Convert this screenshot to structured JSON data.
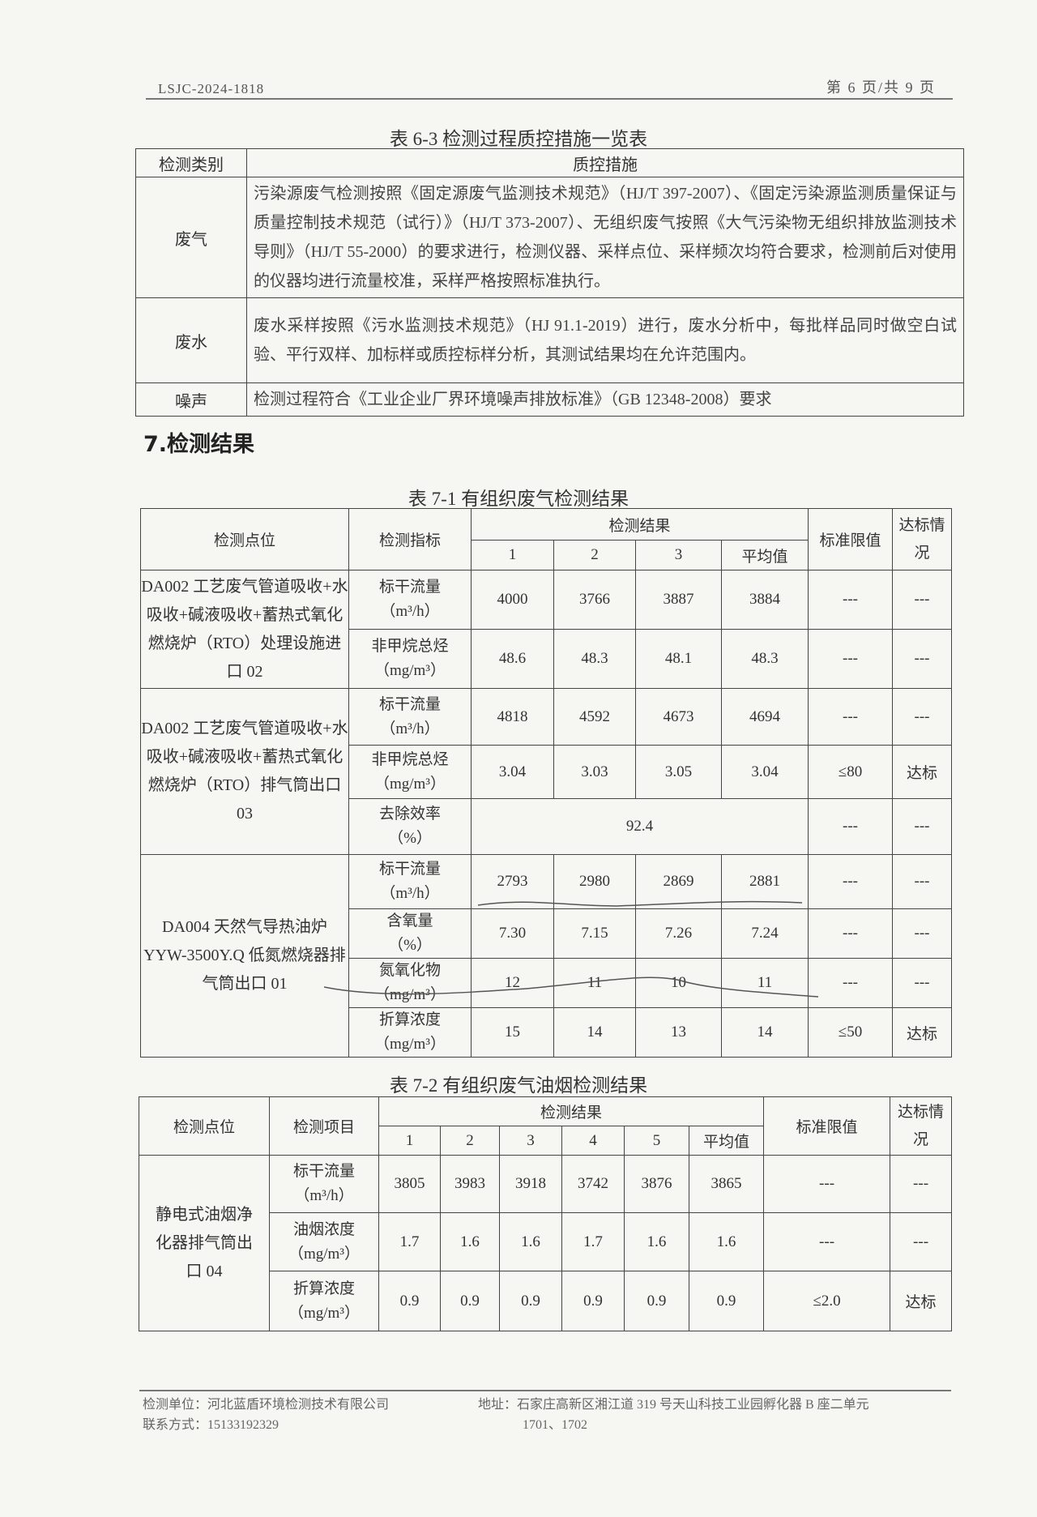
{
  "header": {
    "doc_no": "LSJC-2024-1818",
    "page": "第 6 页/共 9 页"
  },
  "table_6_3": {
    "caption": "表 6-3 检测过程质控措施一览表",
    "headers": [
      "检测类别",
      "质控措施"
    ],
    "rows": [
      {
        "category": "废气",
        "measure": "污染源废气检测按照《固定源废气监测技术规范》（HJ/T 397-2007）、《固定污染源监测质量保证与质量控制技术规范（试行）》（HJ/T 373-2007）、无组织废气按照《大气污染物无组织排放监测技术导则》（HJ/T 55-2000）的要求进行，检测仪器、采样点位、采样频次均符合要求，检测前后对使用的仪器均进行流量校准，采样严格按照标准执行。"
      },
      {
        "category": "废水",
        "measure": "废水采样按照《污水监测技术规范》（HJ 91.1-2019）进行，废水分析中，每批样品同时做空白试验、平行双样、加标样或质控标样分析，其测试结果均在允许范围内。"
      },
      {
        "category": "噪声",
        "measure": "检测过程符合《工业企业厂界环境噪声排放标准》（GB 12348-2008）要求"
      }
    ]
  },
  "section_7": "7.检测结果",
  "table_7_1": {
    "caption": "表 7-1 有组织废气检测结果",
    "headers": {
      "location": "检测点位",
      "indicator": "检测指标",
      "results": "检测结果",
      "runs": [
        "1",
        "2",
        "3",
        "平均值"
      ],
      "limit": "标准限值",
      "status": "达标情况"
    },
    "groups": [
      {
        "location": "DA002 工艺废气管道吸收+水吸收+碱液吸收+蓄热式氧化燃烧炉（RTO）处理设施进口 02",
        "rows": [
          {
            "name": "标干流量",
            "unit": "（m³/h）",
            "values": [
              "4000",
              "3766",
              "3887",
              "3884"
            ],
            "limit": "---",
            "status": "---"
          },
          {
            "name": "非甲烷总烃",
            "unit": "（mg/m³）",
            "values": [
              "48.6",
              "48.3",
              "48.1",
              "48.3"
            ],
            "limit": "---",
            "status": "---"
          }
        ]
      },
      {
        "location": "DA002 工艺废气管道吸收+水吸收+碱液吸收+蓄热式氧化燃烧炉（RTO）排气筒出口 03",
        "rows": [
          {
            "name": "标干流量",
            "unit": "（m³/h）",
            "values": [
              "4818",
              "4592",
              "4673",
              "4694"
            ],
            "limit": "---",
            "status": "---"
          },
          {
            "name": "非甲烷总烃",
            "unit": "（mg/m³）",
            "values": [
              "3.04",
              "3.03",
              "3.05",
              "3.04"
            ],
            "limit": "≤80",
            "status": "达标"
          },
          {
            "name": "去除效率",
            "unit": "（%）",
            "merged_value": "92.4",
            "limit": "---",
            "status": "---"
          }
        ]
      },
      {
        "location": "DA004 天然气导热油炉 YYW-3500Y.Q 低氮燃烧器排气筒出口 01",
        "rows": [
          {
            "name": "标干流量",
            "unit": "（m³/h）",
            "values": [
              "2793",
              "2980",
              "2869",
              "2881"
            ],
            "limit": "---",
            "status": "---"
          },
          {
            "name": "含氧量",
            "unit": "（%）",
            "values": [
              "7.30",
              "7.15",
              "7.26",
              "7.24"
            ],
            "limit": "---",
            "status": "---"
          },
          {
            "name": "氮氧化物",
            "unit": "（mg/m³）",
            "values": [
              "12",
              "11",
              "10",
              "11"
            ],
            "limit": "---",
            "status": "---"
          },
          {
            "name": "折算浓度",
            "unit": "（mg/m³）",
            "values": [
              "15",
              "14",
              "13",
              "14"
            ],
            "limit": "≤50",
            "status": "达标"
          }
        ]
      }
    ]
  },
  "table_7_2": {
    "caption": "表 7-2 有组织废气油烟检测结果",
    "headers": {
      "location": "检测点位",
      "item": "检测项目",
      "results": "检测结果",
      "runs": [
        "1",
        "2",
        "3",
        "4",
        "5",
        "平均值"
      ],
      "limit": "标准限值",
      "status": "达标情况"
    },
    "location": "静电式油烟净化器排气筒出口 04",
    "rows": [
      {
        "name": "标干流量",
        "unit": "（m³/h）",
        "values": [
          "3805",
          "3983",
          "3918",
          "3742",
          "3876",
          "3865"
        ],
        "limit": "---",
        "status": "---"
      },
      {
        "name": "油烟浓度",
        "unit": "（mg/m³）",
        "values": [
          "1.7",
          "1.6",
          "1.6",
          "1.7",
          "1.6",
          "1.6"
        ],
        "limit": "---",
        "status": "---"
      },
      {
        "name": "折算浓度",
        "unit": "（mg/m³）",
        "values": [
          "0.9",
          "0.9",
          "0.9",
          "0.9",
          "0.9",
          "0.9"
        ],
        "limit": "≤2.0",
        "status": "达标"
      }
    ]
  },
  "footer": {
    "unit": "检测单位：河北蓝盾环境检测技术有限公司",
    "contact": "联系方式：15133192329",
    "address": "地址：石家庄高新区湘江道 319 号天山科技工业园孵化器 B 座二单元",
    "address_2": "1701、1702"
  }
}
